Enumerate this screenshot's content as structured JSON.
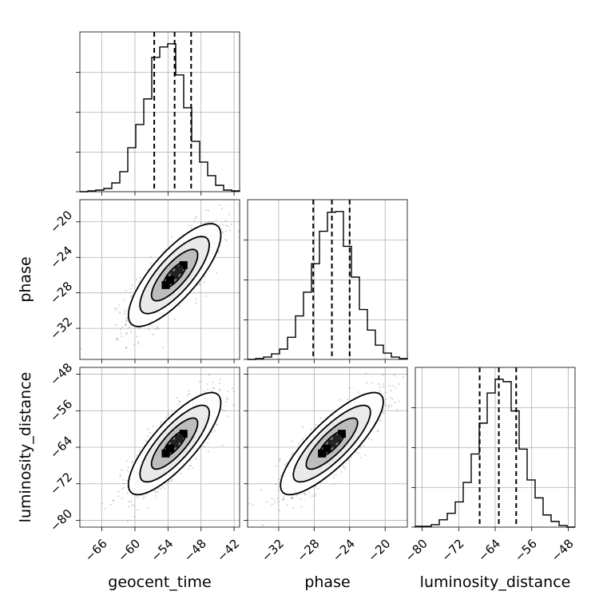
{
  "chart_data": {
    "type": "corner",
    "parameters": [
      "geocent_time",
      "phase",
      "luminosity_distance"
    ],
    "labels": {
      "geocent_time": "geocent_time",
      "phase": "phase",
      "luminosity_distance": "luminosity_distance"
    },
    "grid": true,
    "ranges": {
      "geocent_time": [
        -70,
        -41
      ],
      "phase": [
        -35.5,
        -17.5
      ],
      "luminosity_distance": [
        -81.5,
        -46.5
      ]
    },
    "ticks": {
      "geocent_time": [
        -66,
        -60,
        -54,
        -48,
        -42
      ],
      "phase": [
        -32,
        -28,
        -24,
        -20
      ],
      "luminosity_distance": [
        -80,
        -72,
        -64,
        -56,
        -48
      ]
    },
    "tick_labels": {
      "geocent_time": [
        "−66",
        "−60",
        "−54",
        "−48",
        "−42"
      ],
      "phase": [
        "−32",
        "−28",
        "−24",
        "−20"
      ],
      "luminosity_distance": [
        "−80",
        "−72",
        "−64",
        "−56",
        "−48"
      ]
    },
    "histograms": {
      "geocent_time": {
        "bin_edges": [
          -70,
          -68.55,
          -67.1,
          -65.65,
          -64.2,
          -62.75,
          -61.3,
          -59.85,
          -58.4,
          -56.95,
          -55.5,
          -54.05,
          -52.6,
          -51.15,
          -49.7,
          -48.25,
          -46.8,
          -45.35,
          -43.9,
          -42.45,
          -41
        ],
        "counts": [
          0,
          1,
          2,
          4,
          11,
          25,
          55,
          84,
          116,
          168,
          181,
          185,
          146,
          105,
          63,
          37,
          20,
          8,
          2,
          1
        ],
        "quantiles": [
          -56.5,
          -52.8,
          -49.8
        ]
      },
      "phase": {
        "bin_edges": [
          -35.5,
          -34.6,
          -33.7,
          -32.8,
          -31.9,
          -31,
          -30.1,
          -29.2,
          -28.3,
          -27.4,
          -26.5,
          -25.6,
          -24.7,
          -23.8,
          -22.9,
          -22,
          -21.1,
          -20.2,
          -19.3,
          -18.4,
          -17.5
        ],
        "counts": [
          0,
          1,
          3,
          7,
          13,
          28,
          55,
          85,
          121,
          162,
          186,
          187,
          143,
          104,
          63,
          37,
          18,
          8,
          3,
          1
        ],
        "quantiles": [
          -28.1,
          -26.0,
          -24.0
        ]
      },
      "luminosity_distance": {
        "bin_edges": [
          -81.5,
          -79.75,
          -78,
          -76.25,
          -74.5,
          -72.75,
          -71,
          -69.25,
          -67.5,
          -65.75,
          -64,
          -62.25,
          -60.5,
          -58.75,
          -57,
          -55.25,
          -53.5,
          -51.75,
          -50,
          -48.25,
          -46.5
        ],
        "counts": [
          1,
          1,
          3,
          9,
          17,
          31,
          55,
          90,
          128,
          165,
          182,
          179,
          143,
          96,
          58,
          36,
          15,
          7,
          2,
          0
        ],
        "quantiles": [
          -67.4,
          -63.2,
          -59.4
        ]
      }
    },
    "pairs": [
      {
        "x": "geocent_time",
        "y": "phase",
        "mean": [
          -52.8,
          -26.0
        ],
        "std": [
          4.2,
          2.9
        ],
        "corr": 0.78
      },
      {
        "x": "geocent_time",
        "y": "luminosity_distance",
        "mean": [
          -52.8,
          -63.2
        ],
        "std": [
          4.2,
          5.6
        ],
        "corr": 0.8
      },
      {
        "x": "phase",
        "y": "luminosity_distance",
        "mean": [
          -26.0,
          -63.2
        ],
        "std": [
          2.9,
          5.6
        ],
        "corr": 0.82
      }
    ],
    "samples": 1000
  }
}
